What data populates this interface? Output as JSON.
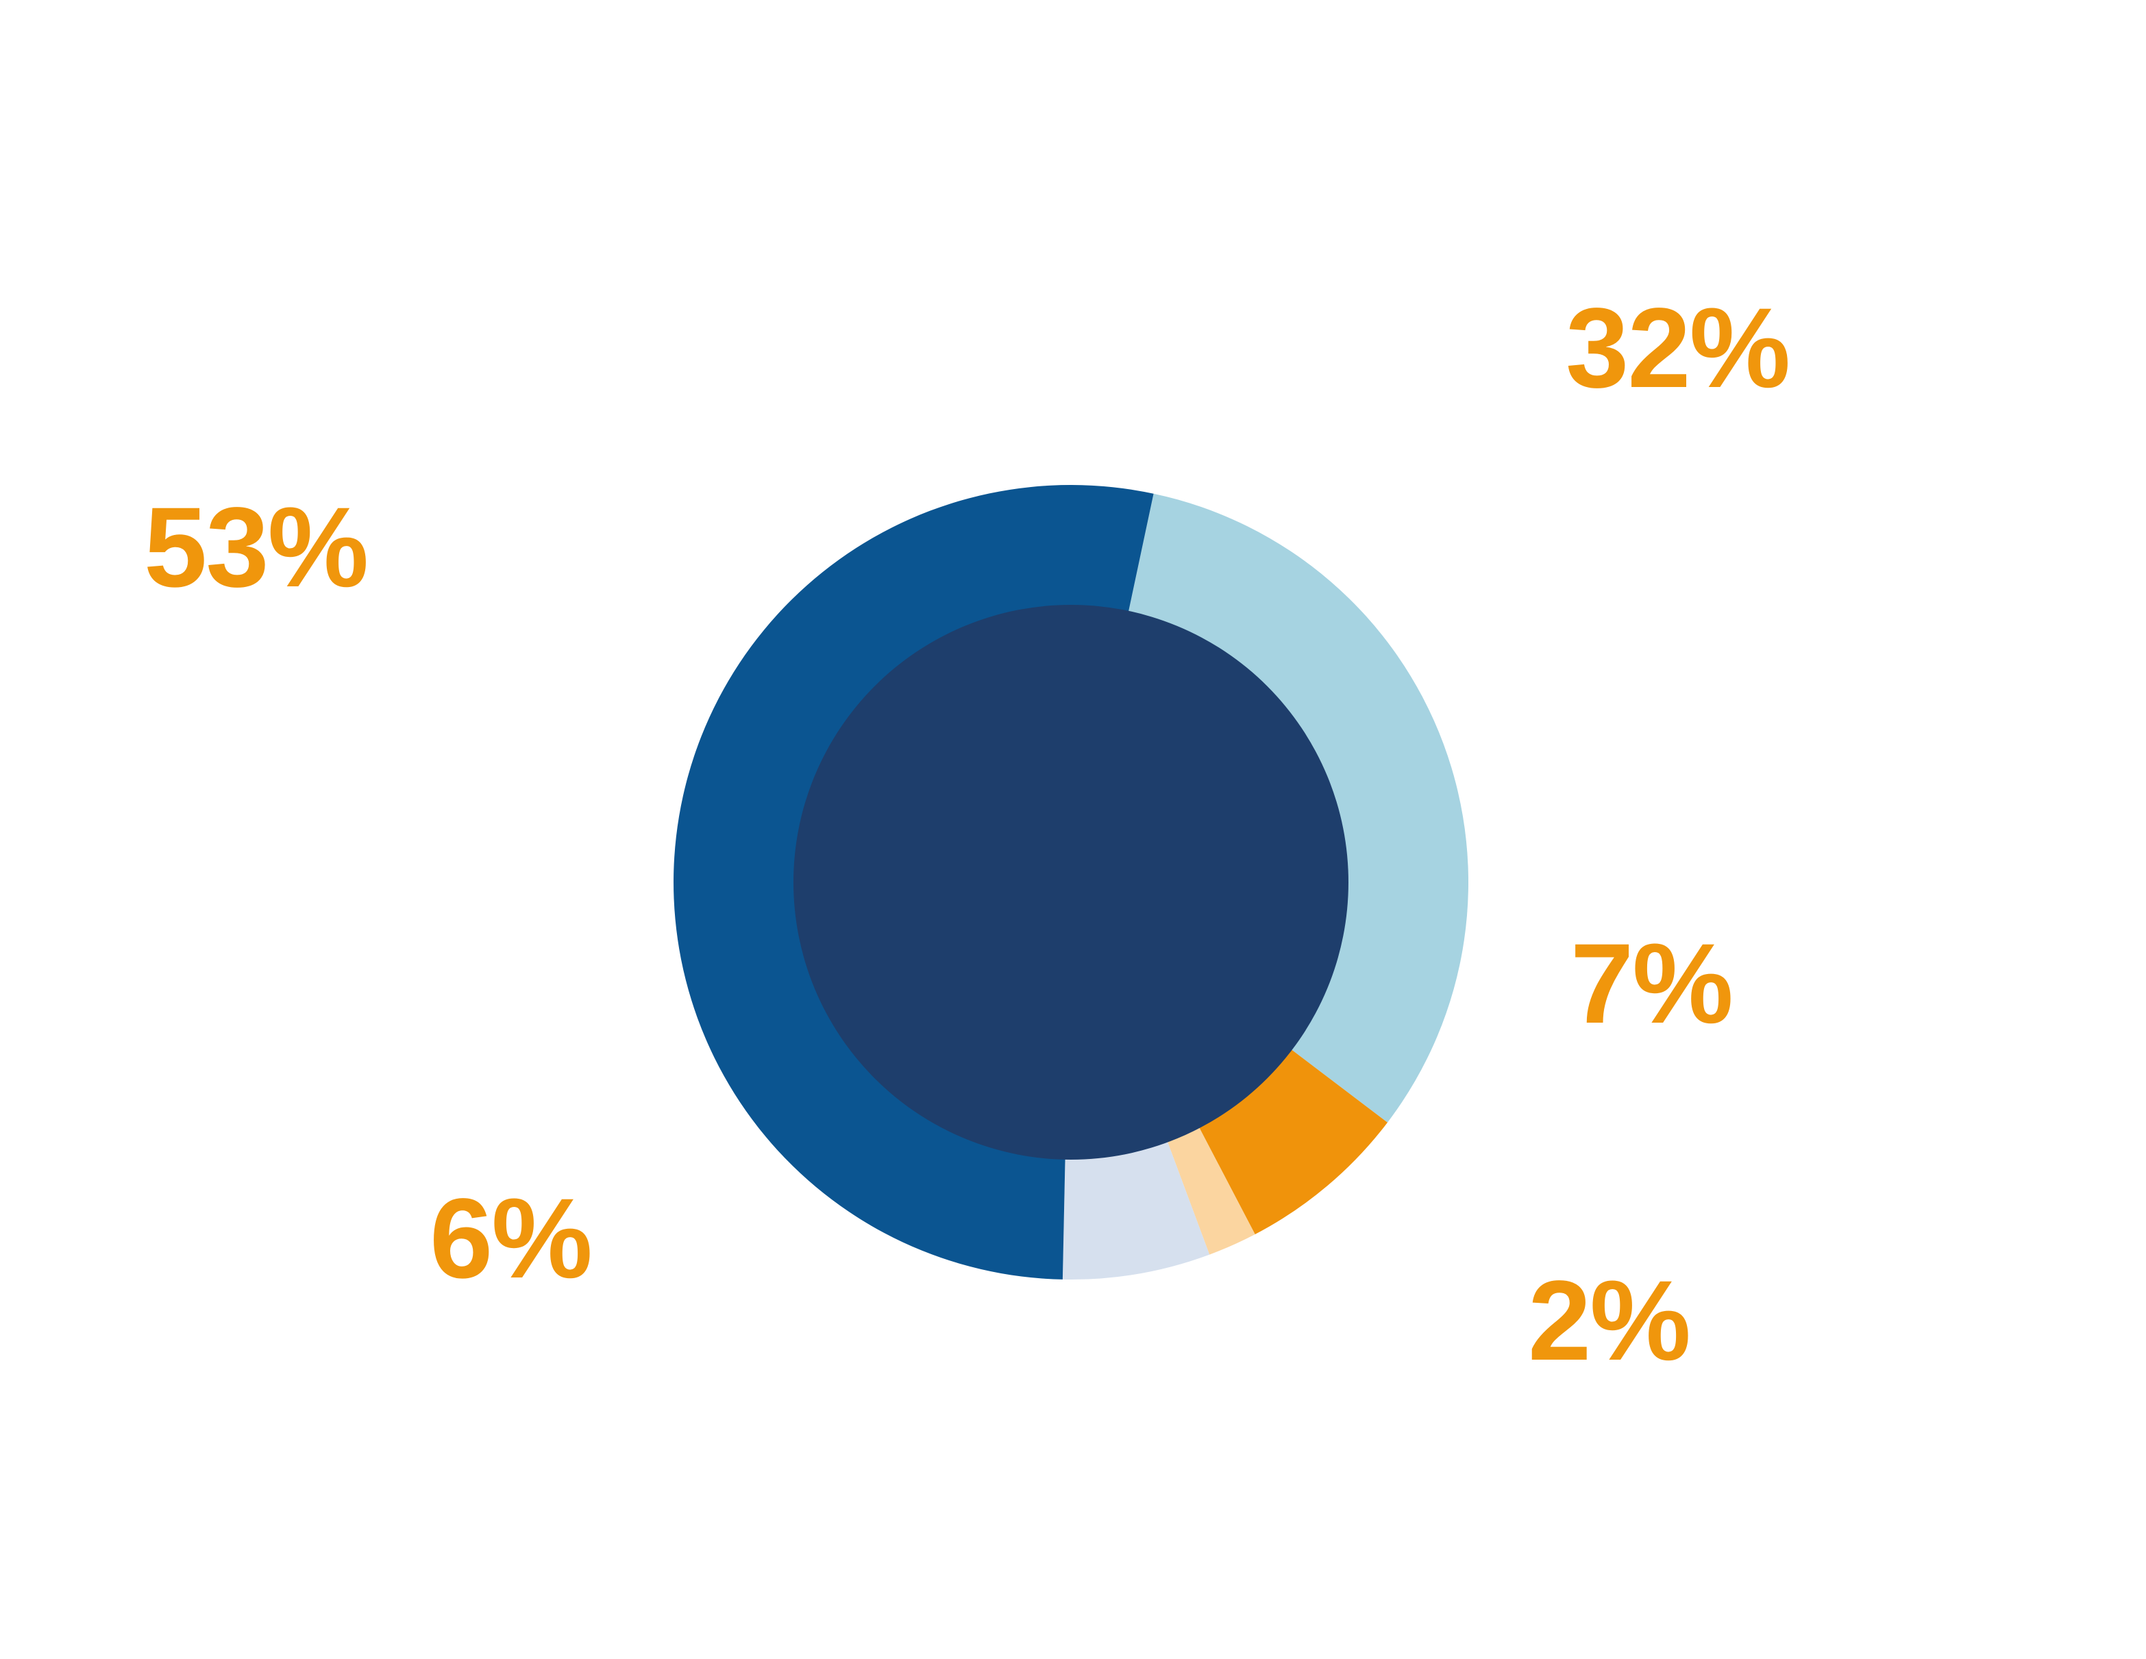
{
  "background_color": "#FFFFFF",
  "chart_data": {
    "type": "pie",
    "subtype": "donut",
    "title": "",
    "legend": "none",
    "direction": "clockwise",
    "start_angle_deg": 12,
    "values_sum": 100,
    "inner_disk_color": "#1E3E6C",
    "label_color": "#F0960C",
    "categories": [
      "light-blue",
      "orange",
      "peach",
      "pale-blue",
      "dark-blue"
    ],
    "values": [
      32,
      7,
      2,
      6,
      53
    ],
    "segments": [
      {
        "name": "light-blue",
        "value": 32,
        "label": "32%",
        "color": "#A6D3E1"
      },
      {
        "name": "orange",
        "value": 7,
        "label": "7%",
        "color": "#F0930B"
      },
      {
        "name": "peach",
        "value": 2,
        "label": "2%",
        "color": "#FBD5A0"
      },
      {
        "name": "pale-blue",
        "value": 6,
        "label": "6%",
        "color": "#D6E0EE"
      },
      {
        "name": "dark-blue",
        "value": 53,
        "label": "53%",
        "color": "#0B5591"
      }
    ]
  }
}
